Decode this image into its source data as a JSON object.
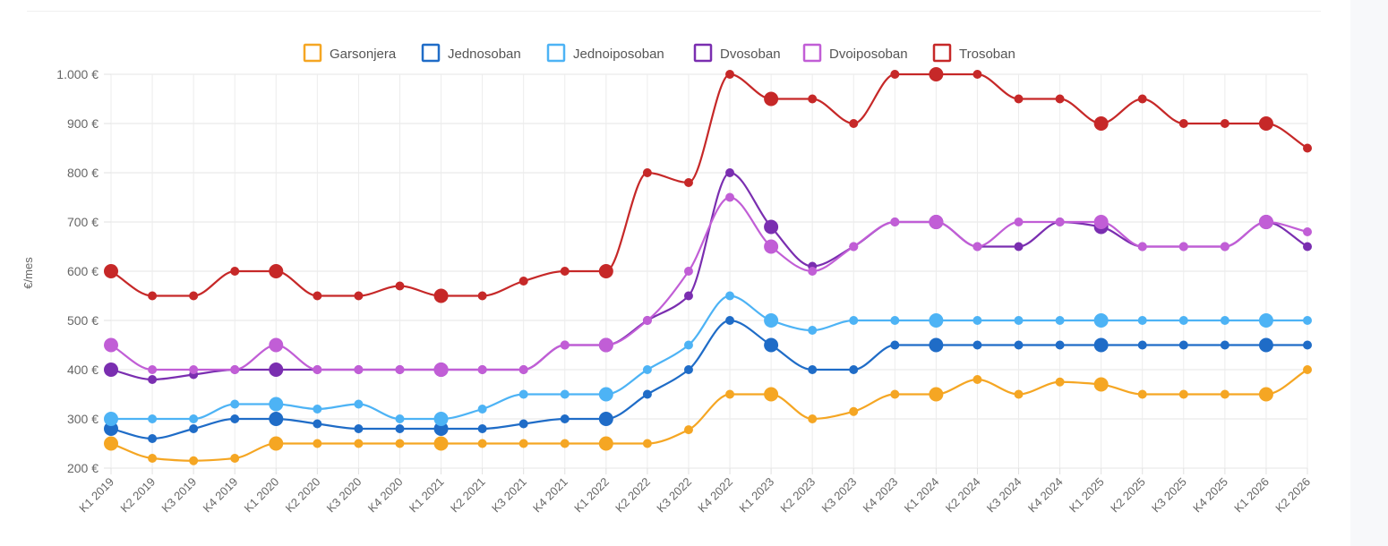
{
  "chart_data": {
    "type": "line",
    "title": "",
    "xlabel": "",
    "ylabel": "€/mes",
    "ylim": [
      200,
      1000
    ],
    "yticks": [
      "200 €",
      "300 €",
      "400 €",
      "500 €",
      "600 €",
      "700 €",
      "800 €",
      "900 €",
      "1.000 €"
    ],
    "yticks_values": [
      200,
      300,
      400,
      500,
      600,
      700,
      800,
      900,
      1000
    ],
    "grid": true,
    "legend_position": "top",
    "categories": [
      "K1 2019",
      "K2 2019",
      "K3 2019",
      "K4 2019",
      "K1 2020",
      "K2 2020",
      "K3 2020",
      "K4 2020",
      "K1 2021",
      "K2 2021",
      "K3 2021",
      "K4 2021",
      "K1 2022",
      "K2 2022",
      "K3 2022",
      "K4 2022",
      "K1 2023",
      "K2 2023",
      "K3 2023",
      "K4 2023",
      "K1 2024",
      "K2 2024",
      "K3 2024",
      "K4 2024",
      "K1 2025",
      "K2 2025",
      "K3 2025",
      "K4 2025",
      "K1 2026",
      "K2 2026"
    ],
    "series": [
      {
        "name": "Garsonjera",
        "color": "#f5a623",
        "values": [
          250,
          220,
          215,
          220,
          250,
          250,
          250,
          250,
          250,
          250,
          250,
          250,
          250,
          250,
          278,
          350,
          350,
          300,
          315,
          350,
          350,
          380,
          350,
          375,
          370,
          350,
          350,
          350,
          350,
          400
        ]
      },
      {
        "name": "Jednosoban",
        "color": "#1f6cc7",
        "values": [
          280,
          260,
          280,
          300,
          300,
          290,
          280,
          280,
          280,
          280,
          290,
          300,
          300,
          350,
          400,
          500,
          450,
          400,
          400,
          450,
          450,
          450,
          450,
          450,
          450,
          450,
          450,
          450,
          450,
          450
        ]
      },
      {
        "name": "Jednoiposoban",
        "color": "#4db3f5",
        "values": [
          300,
          300,
          300,
          330,
          330,
          320,
          330,
          300,
          300,
          320,
          350,
          350,
          350,
          400,
          450,
          550,
          500,
          480,
          500,
          500,
          500,
          500,
          500,
          500,
          500,
          500,
          500,
          500,
          500,
          500
        ]
      },
      {
        "name": "Dvosoban",
        "color": "#7a2eb0",
        "values": [
          400,
          380,
          390,
          400,
          400,
          400,
          400,
          400,
          400,
          400,
          400,
          450,
          450,
          500,
          550,
          800,
          690,
          610,
          650,
          700,
          700,
          650,
          650,
          700,
          690,
          650,
          650,
          650,
          700,
          650
        ]
      },
      {
        "name": "Dvoiposoban",
        "color": "#c15ed6",
        "values": [
          450,
          400,
          400,
          400,
          450,
          400,
          400,
          400,
          400,
          400,
          400,
          450,
          450,
          500,
          600,
          750,
          650,
          600,
          650,
          700,
          700,
          650,
          700,
          700,
          700,
          650,
          650,
          650,
          700,
          680
        ]
      },
      {
        "name": "Trosoban",
        "color": "#c62828",
        "values": [
          600,
          550,
          550,
          600,
          600,
          550,
          550,
          570,
          550,
          550,
          580,
          600,
          600,
          800,
          780,
          1000,
          950,
          950,
          900,
          1000,
          1000,
          1000,
          950,
          950,
          900,
          950,
          900,
          900,
          900,
          850
        ]
      }
    ]
  }
}
